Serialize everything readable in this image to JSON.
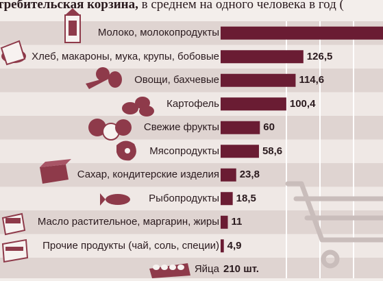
{
  "title": {
    "bold": "требительская корзина,",
    "rest": " в среднем на одного человека в год ("
  },
  "colors": {
    "bar": "#6a1c33",
    "stripe_light": "#efe8e5",
    "stripe_dark": "#dfd4d1",
    "grid": "#ffffff",
    "cart": "#c9bdbb",
    "icon": "#8e3a4a"
  },
  "chart_data": {
    "type": "bar",
    "orientation": "horizontal",
    "categories": [
      "Молоко, молокопродукты",
      "Хлеб, макароны, мука, крупы, бобовые",
      "Овощи, бахчевые",
      "Картофель",
      "Свежие фрукты",
      "Мясопродукты",
      "Сахар, кондитерские изделия",
      "Рыбопродукты",
      "Масло растительное, маргарин, жиры",
      "Прочие продукты (чай, соль, специи)",
      "Яйца"
    ],
    "values": [
      290,
      126.5,
      114.6,
      100.4,
      60,
      58.6,
      23.8,
      18.5,
      11,
      4.9,
      null
    ],
    "value_labels": [
      "",
      "126,5",
      "114,6",
      "100,4",
      "60",
      "58,6",
      "23,8",
      "18,5",
      "11",
      "4,9",
      "210 шт."
    ],
    "icons": [
      "milk-carton-icon",
      "bread-flour-icon",
      "vegetables-icon",
      "potatoes-icon",
      "fruits-icon",
      "meat-icon",
      "sugar-box-icon",
      "fish-icon",
      "butter-icon",
      "tea-pack-icon",
      "eggs-icon"
    ],
    "xlim": [
      0,
      300
    ],
    "grid": true
  }
}
